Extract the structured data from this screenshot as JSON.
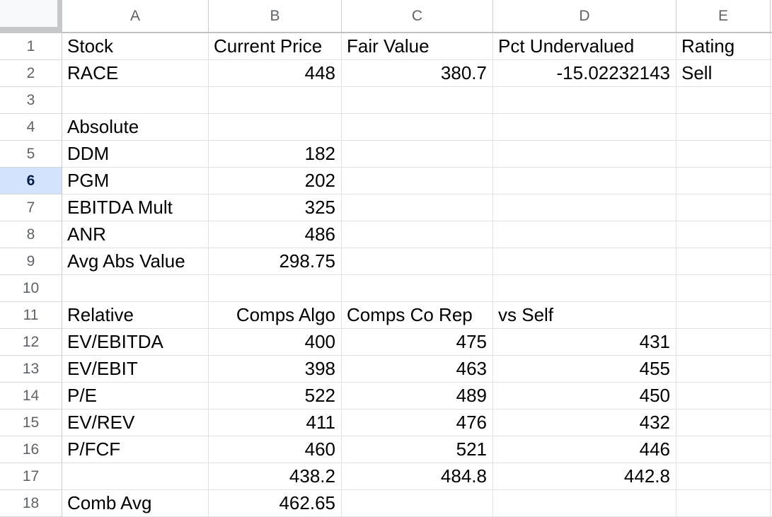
{
  "sheet": {
    "description": "stock-valuation-spreadsheet",
    "selected_row": "6",
    "column_headers": [
      "A",
      "B",
      "C",
      "D",
      "E"
    ],
    "rows": [
      {
        "n": "1",
        "a": "Stock",
        "b": "Current Price",
        "c": "Fair Value",
        "d": "Pct Undervalued",
        "e": "Rating"
      },
      {
        "n": "2",
        "a": "RACE",
        "b": "448",
        "c": "380.7",
        "d": "-15.02232143",
        "e": "Sell"
      },
      {
        "n": "3"
      },
      {
        "n": "4",
        "a": "Absolute"
      },
      {
        "n": "5",
        "a": "DDM",
        "b": "182"
      },
      {
        "n": "6",
        "a": "PGM",
        "b": "202"
      },
      {
        "n": "7",
        "a": "EBITDA Mult",
        "b": "325"
      },
      {
        "n": "8",
        "a": "ANR",
        "b": "486"
      },
      {
        "n": "9",
        "a": "Avg Abs Value",
        "b": "298.75"
      },
      {
        "n": "10"
      },
      {
        "n": "11",
        "a": "Relative",
        "b": "Comps Algo",
        "c": "Comps Co Rep",
        "d": "vs Self"
      },
      {
        "n": "12",
        "a": "EV/EBITDA",
        "b": "400",
        "c": "475",
        "d": "431"
      },
      {
        "n": "13",
        "a": "EV/EBIT",
        "b": "398",
        "c": "463",
        "d": "455"
      },
      {
        "n": "14",
        "a": "P/E",
        "b": "522",
        "c": "489",
        "d": "450"
      },
      {
        "n": "15",
        "a": "EV/REV",
        "b": "411",
        "c": "476",
        "d": "432"
      },
      {
        "n": "16",
        "a": "P/FCF",
        "b": "460",
        "c": "521",
        "d": "446"
      },
      {
        "n": "17",
        "b": "438.2",
        "c": "484.8",
        "d": "442.8"
      },
      {
        "n": "18",
        "a": "Comb Avg",
        "b": "462.65"
      }
    ],
    "colors": {
      "selected_header_bg": "#d3e3fd",
      "selected_header_text": "#041e49",
      "header_text": "#5f6368",
      "cell_text": "#000000",
      "gridline": "#e2e2e2",
      "header_border": "#c9ccce",
      "corner_bg": "#f8f9fa"
    }
  }
}
